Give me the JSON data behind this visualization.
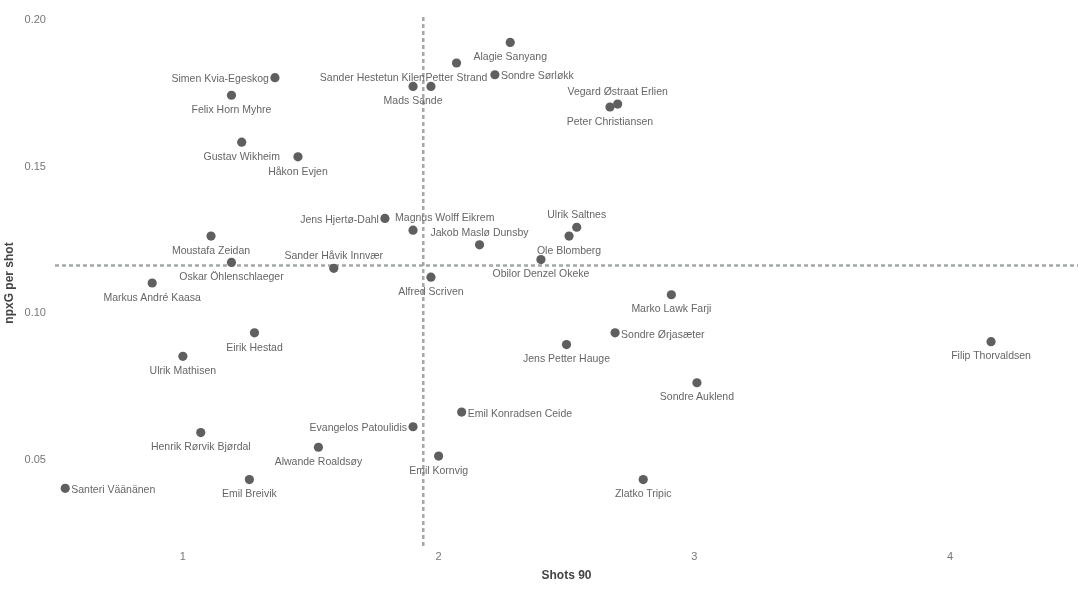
{
  "chart_data": {
    "type": "scatter",
    "xlabel": "Shots 90",
    "ylabel": "npxG per shot",
    "xlim": [
      0.5,
      4.5
    ],
    "ylim": [
      0.02,
      0.2
    ],
    "xticks": [
      1,
      2,
      3,
      4
    ],
    "yticks": [
      {
        "value": 0.05,
        "label": "0.05"
      },
      {
        "value": 0.1,
        "label": "0.10"
      },
      {
        "value": 0.15,
        "label": "0.15"
      },
      {
        "value": 0.2,
        "label": "0.20"
      }
    ],
    "marker": "circle",
    "series": [
      {
        "color": "#5f5f5f",
        "x": [
          1.36,
          1.19,
          1.23,
          1.45,
          1.9,
          1.97,
          2.07,
          2.28,
          2.22,
          2.7,
          2.67,
          1.79,
          1.9,
          2.16,
          2.54,
          2.51,
          1.11,
          1.19,
          1.59,
          2.4,
          1.97,
          0.88,
          2.91,
          2.69,
          2.5,
          1.28,
          1.0,
          4.16,
          3.01,
          1.9,
          2.09,
          1.07,
          1.53,
          2.0,
          0.54,
          1.26,
          2.8
        ],
        "values": [
          0.18,
          0.174,
          0.158,
          0.153,
          0.177,
          0.177,
          0.185,
          0.192,
          0.181,
          0.171,
          0.17,
          0.132,
          0.128,
          0.123,
          0.129,
          0.126,
          0.126,
          0.117,
          0.115,
          0.118,
          0.112,
          0.11,
          0.106,
          0.093,
          0.089,
          0.093,
          0.085,
          0.09,
          0.076,
          0.061,
          0.066,
          0.059,
          0.054,
          0.051,
          0.04,
          0.043,
          0.043
        ]
      }
    ],
    "ref_lines": [
      {
        "axis": "x",
        "value": 1.94,
        "color": "#a3a8a8",
        "line_style": "dashed"
      },
      {
        "axis": "y",
        "value": 0.116,
        "color": "#a3a8a8",
        "line_style": "dashed"
      }
    ],
    "annotations": [
      {
        "text": "Simen Kvia-Egeskog",
        "x": 1.36,
        "y": 0.18
      },
      {
        "text": "Felix Horn Myhre",
        "x": 1.19,
        "y": 0.174
      },
      {
        "text": "Gustav Wikheim",
        "x": 1.23,
        "y": 0.158
      },
      {
        "text": "Håkon Evjen",
        "x": 1.45,
        "y": 0.153
      },
      {
        "text": "Mads Sande",
        "x": 1.9,
        "y": 0.177
      },
      {
        "text": "Sander Hestetun Kilen",
        "x": 1.97,
        "y": 0.177
      },
      {
        "text": "Petter Strand",
        "x": 2.07,
        "y": 0.185
      },
      {
        "text": "Alagie Sanyang",
        "x": 2.28,
        "y": 0.192
      },
      {
        "text": "Sondre Sørløkk",
        "x": 2.22,
        "y": 0.181
      },
      {
        "text": "Vegard Østraat Erlien",
        "x": 2.7,
        "y": 0.171
      },
      {
        "text": "Peter Christiansen",
        "x": 2.67,
        "y": 0.17
      },
      {
        "text": "Jens Hjertø-Dahl",
        "x": 1.79,
        "y": 0.132
      },
      {
        "text": "Magnus Wolff Eikrem",
        "x": 1.9,
        "y": 0.128
      },
      {
        "text": "Jakob Maslø Dunsby",
        "x": 2.16,
        "y": 0.123
      },
      {
        "text": "Ulrik Saltnes",
        "x": 2.54,
        "y": 0.129
      },
      {
        "text": "Ole Blomberg",
        "x": 2.51,
        "y": 0.126
      },
      {
        "text": "Moustafa Zeidan",
        "x": 1.11,
        "y": 0.126
      },
      {
        "text": "Oskar Öhlenschlaeger",
        "x": 1.19,
        "y": 0.117
      },
      {
        "text": "Sander Håvik Innvær",
        "x": 1.59,
        "y": 0.115
      },
      {
        "text": "Obilor Denzel Okeke",
        "x": 2.4,
        "y": 0.118
      },
      {
        "text": "Alfred Scriven",
        "x": 1.97,
        "y": 0.112
      },
      {
        "text": "Markus André Kaasa",
        "x": 0.88,
        "y": 0.11
      },
      {
        "text": "Marko Lawk Farji",
        "x": 2.91,
        "y": 0.106
      },
      {
        "text": "Sondre Ørjasæter",
        "x": 2.69,
        "y": 0.093
      },
      {
        "text": "Jens Petter Hauge",
        "x": 2.5,
        "y": 0.089
      },
      {
        "text": "Eirik Hestad",
        "x": 1.28,
        "y": 0.093
      },
      {
        "text": "Ulrik Mathisen",
        "x": 1.0,
        "y": 0.085
      },
      {
        "text": "Filip Thorvaldsen",
        "x": 4.16,
        "y": 0.09
      },
      {
        "text": "Sondre Auklend",
        "x": 3.01,
        "y": 0.076
      },
      {
        "text": "Evangelos Patoulidis",
        "x": 1.9,
        "y": 0.061
      },
      {
        "text": "Emil Konradsen Ceide",
        "x": 2.09,
        "y": 0.066
      },
      {
        "text": "Henrik Rørvik Bjørdal",
        "x": 1.07,
        "y": 0.059
      },
      {
        "text": "Alwande Roaldsøy",
        "x": 1.53,
        "y": 0.054
      },
      {
        "text": "Emil Kornvig",
        "x": 2.0,
        "y": 0.051
      },
      {
        "text": "Santeri Väänänen",
        "x": 0.54,
        "y": 0.04
      },
      {
        "text": "Emil Breivik",
        "x": 1.26,
        "y": 0.043
      },
      {
        "text": "Zlatko Tripic",
        "x": 2.8,
        "y": 0.043
      }
    ]
  }
}
